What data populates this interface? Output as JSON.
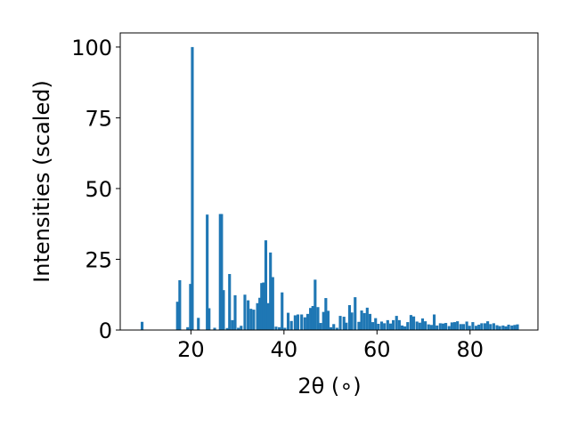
{
  "chart_data": {
    "type": "bar",
    "title": "",
    "xlabel": "2θ (∘)",
    "ylabel": "Intensities (scaled)",
    "xlim": [
      4.8,
      94.6
    ],
    "ylim": [
      0,
      105
    ],
    "x_ticks": [
      20,
      40,
      60,
      80
    ],
    "y_ticks": [
      0,
      25,
      50,
      75,
      100
    ],
    "grid": false,
    "bar_color": "#1f77b4",
    "bar_width": 0.6,
    "x": [
      9.5,
      17.1,
      17.6,
      19.3,
      19.9,
      20.3,
      21.6,
      23.5,
      23.9,
      25.1,
      26.3,
      26.6,
      27.0,
      27.8,
      28.3,
      28.9,
      29.5,
      30.2,
      30.8,
      31.6,
      32.3,
      32.9,
      33.5,
      34.3,
      34.8,
      35.2,
      35.6,
      36.1,
      36.6,
      37.1,
      37.6,
      38.3,
      39.0,
      39.6,
      40.2,
      40.9,
      41.6,
      42.4,
      43.0,
      43.8,
      44.5,
      45.1,
      45.7,
      46.2,
      46.7,
      47.3,
      47.9,
      48.5,
      49.0,
      49.5,
      50.1,
      50.7,
      51.4,
      52.1,
      52.9,
      53.4,
      54.1,
      54.6,
      55.3,
      56.1,
      56.7,
      57.3,
      57.9,
      58.5,
      59.1,
      59.7,
      60.3,
      61.0,
      61.6,
      62.3,
      62.9,
      63.5,
      64.2,
      64.8,
      65.4,
      66.0,
      66.6,
      67.3,
      67.9,
      68.6,
      69.2,
      69.8,
      70.4,
      71.1,
      71.7,
      72.3,
      72.9,
      73.6,
      74.2,
      74.8,
      75.5,
      76.1,
      76.7,
      77.3,
      78.0,
      78.6,
      79.3,
      79.9,
      80.6,
      81.3,
      81.9,
      82.5,
      83.2,
      83.8,
      84.4,
      85.1,
      85.8,
      86.4,
      87.1,
      87.7,
      88.3,
      89.0,
      89.6,
      90.2
    ],
    "values": [
      2.9,
      10.0,
      17.6,
      1.0,
      16.3,
      100.0,
      4.3,
      40.8,
      7.7,
      0.8,
      41.0,
      41.0,
      14.1,
      0.7,
      19.8,
      3.5,
      12.3,
      0.8,
      1.5,
      12.5,
      10.5,
      7.5,
      7.2,
      9.5,
      11.4,
      16.6,
      16.8,
      31.7,
      9.5,
      27.4,
      18.7,
      1.2,
      1.0,
      13.3,
      0.8,
      6.1,
      3.2,
      5.2,
      5.5,
      5.5,
      4.5,
      5.7,
      7.8,
      8.5,
      17.8,
      8.1,
      2.5,
      6.4,
      11.3,
      6.8,
      1.0,
      2.1,
      0.8,
      5.0,
      4.7,
      2.6,
      8.8,
      6.2,
      11.6,
      2.9,
      6.9,
      6.0,
      7.9,
      5.7,
      2.8,
      4.2,
      2.2,
      3.0,
      2.4,
      3.5,
      2.3,
      3.5,
      5.0,
      3.5,
      1.6,
      1.3,
      2.8,
      5.3,
      4.8,
      3.0,
      2.6,
      4.1,
      3.1,
      2.0,
      1.8,
      5.5,
      1.6,
      2.4,
      2.3,
      2.5,
      1.4,
      2.7,
      2.8,
      3.1,
      2.1,
      2.1,
      3.0,
      1.5,
      2.8,
      1.5,
      1.9,
      2.4,
      2.4,
      3.1,
      2.1,
      2.4,
      1.7,
      1.4,
      1.6,
      1.3,
      1.9,
      1.6,
      1.8,
      2.0
    ]
  }
}
